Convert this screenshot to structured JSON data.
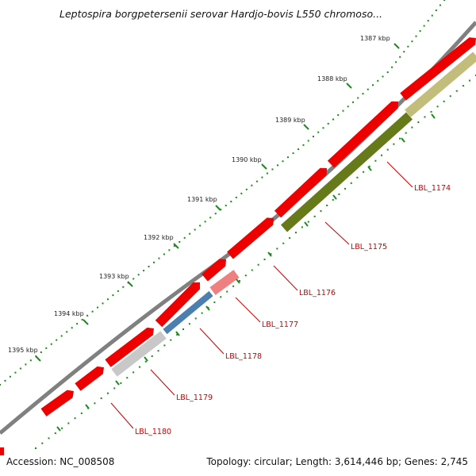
{
  "title": "Leptospira borgpetersenii serovar Hardjo-bovis L550 chromoso...",
  "footer": {
    "accession": "Accession: NC_008508",
    "summary": "Topology: circular; Length: 3,614,446 bp; Genes: 2,745"
  },
  "colors": {
    "backbone": "#808080",
    "gene_forward": "#ee0000",
    "tick_green": "#1a8a1a",
    "label_red": "#cc0000",
    "olive_light": "#c2bd7a",
    "olive_dark": "#667a1a",
    "pink": "#f08080",
    "blue": "#4a7fb0",
    "gray_light": "#c8c8c8"
  },
  "kbp_ticks": [
    {
      "label": "1387 kbp"
    },
    {
      "label": "1388 kbp"
    },
    {
      "label": "1389 kbp"
    },
    {
      "label": "1390 kbp"
    },
    {
      "label": "1391 kbp"
    },
    {
      "label": "1392 kbp"
    },
    {
      "label": "1393 kbp"
    },
    {
      "label": "1394 kbp"
    },
    {
      "label": "1395 kbp"
    }
  ],
  "gene_labels": [
    {
      "label": "LBL_1174"
    },
    {
      "label": "LBL_1175"
    },
    {
      "label": "LBL_1176"
    },
    {
      "label": "LBL_1177"
    },
    {
      "label": "LBL_1178"
    },
    {
      "label": "LBL_1179"
    },
    {
      "label": "LBL_1180"
    }
  ]
}
